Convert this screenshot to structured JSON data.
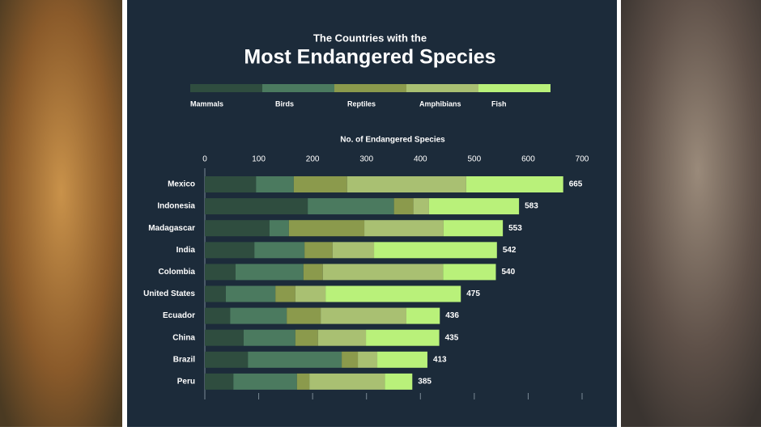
{
  "chart_data": {
    "type": "stacked-barh",
    "title": "Most Endangered Species",
    "subtitle": "The Countries with the",
    "x_label": "No. of Endangered Species",
    "categories": [
      "Mexico",
      "Indonesia",
      "Madagascar",
      "India",
      "Colombia",
      "United States",
      "Ecuador",
      "China",
      "Brazil",
      "Peru"
    ],
    "series": [
      {
        "name": "Mammals",
        "color": "#2f4d3f",
        "values": [
          95,
          191,
          120,
          92,
          57,
          39,
          47,
          72,
          80,
          53
        ]
      },
      {
        "name": "Birds",
        "color": "#4b7a5f",
        "values": [
          70,
          160,
          36,
          93,
          126,
          92,
          105,
          96,
          174,
          118
        ]
      },
      {
        "name": "Reptiles",
        "color": "#8b9a4c",
        "values": [
          99,
          36,
          140,
          52,
          36,
          37,
          63,
          42,
          30,
          23
        ]
      },
      {
        "name": "Amphibians",
        "color": "#a9c072",
        "values": [
          221,
          29,
          147,
          77,
          223,
          56,
          159,
          89,
          36,
          140
        ]
      },
      {
        "name": "Fish",
        "color": "#b9f17a",
        "values": [
          180,
          167,
          110,
          228,
          98,
          251,
          62,
          136,
          93,
          51
        ]
      }
    ],
    "totals": [
      665,
      583,
      553,
      542,
      540,
      475,
      436,
      435,
      413,
      385
    ],
    "xlim": [
      0,
      700
    ],
    "xticks": [
      0,
      100,
      200,
      300,
      400,
      500,
      600,
      700
    ]
  }
}
